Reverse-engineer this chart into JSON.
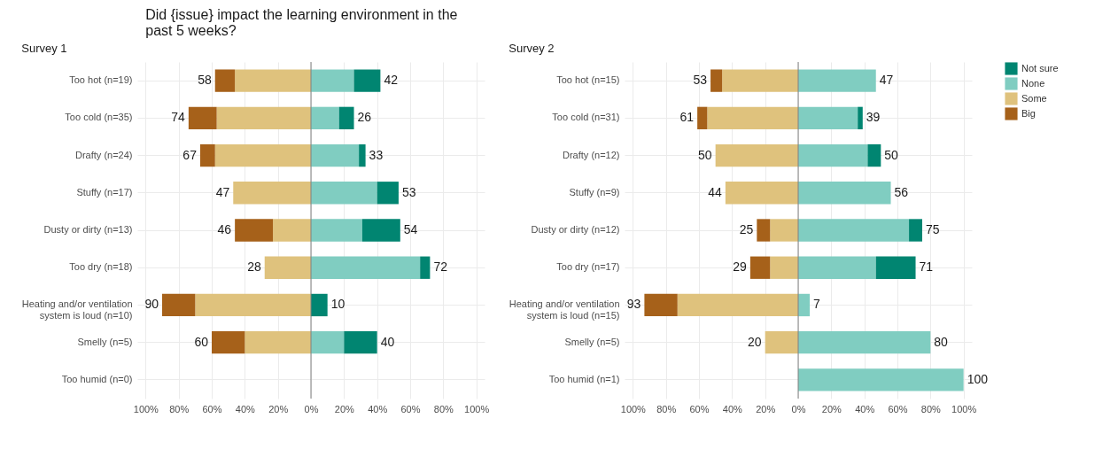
{
  "chart_data": [
    {
      "type": "bar",
      "orientation": "horizontal",
      "stacked": true,
      "grid": true,
      "legend": "right",
      "title": "Did {issue} impact the learning environment in the past 5 weeks?",
      "subtitle": "Survey 1",
      "categories": [
        "Too hot (n=19)",
        "Too cold (n=35)",
        "Drafty (n=24)",
        "Stuffy (n=17)",
        "Dusty or dirty (n=13)",
        "Too dry (n=18)",
        "Heating and/or ventilation system is loud (n=10)",
        "Smelly (n=5)",
        "Too humid (n=0)"
      ],
      "xlim": [
        -105,
        105
      ],
      "xticks": [
        {
          "value": -100,
          "label": "100%"
        },
        {
          "value": -80,
          "label": "80%"
        },
        {
          "value": -60,
          "label": "60%"
        },
        {
          "value": -40,
          "label": "40%"
        },
        {
          "value": -20,
          "label": "20%"
        },
        {
          "value": 0,
          "label": "0%"
        },
        {
          "value": 20,
          "label": "20%"
        },
        {
          "value": 40,
          "label": "40%"
        },
        {
          "value": 60,
          "label": "60%"
        },
        {
          "value": 80,
          "label": "80%"
        },
        {
          "value": 100,
          "label": "100%"
        }
      ],
      "series": [
        {
          "name": "Some",
          "color": "#dfc27d",
          "values": [
            -46,
            -57,
            -58,
            -47,
            -23,
            -28,
            -70,
            -40,
            null
          ]
        },
        {
          "name": "Big",
          "color": "#a6611a",
          "values": [
            -12,
            -17,
            -9,
            null,
            -23,
            null,
            -20,
            -20,
            null
          ]
        },
        {
          "name": "None",
          "color": "#80cdc1",
          "values": [
            26,
            17,
            29,
            40,
            31,
            66,
            null,
            20,
            null
          ]
        },
        {
          "name": "Not sure",
          "color": "#018571",
          "values": [
            16,
            9,
            4,
            13,
            23,
            6,
            10,
            20,
            null
          ]
        }
      ],
      "ref_lines": [
        {
          "axis": "x",
          "value": 0,
          "color": "#808080"
        }
      ],
      "annotations": [
        {
          "text": "58",
          "x": -58,
          "y": "Too hot (n=19)"
        },
        {
          "text": "42",
          "x": 42,
          "y": "Too hot (n=19)"
        },
        {
          "text": "74",
          "x": -74,
          "y": "Too cold (n=35)"
        },
        {
          "text": "26",
          "x": 26,
          "y": "Too cold (n=35)"
        },
        {
          "text": "67",
          "x": -67,
          "y": "Drafty (n=24)"
        },
        {
          "text": "33",
          "x": 33,
          "y": "Drafty (n=24)"
        },
        {
          "text": "47",
          "x": -47,
          "y": "Stuffy (n=17)"
        },
        {
          "text": "53",
          "x": 53,
          "y": "Stuffy (n=17)"
        },
        {
          "text": "46",
          "x": -46,
          "y": "Dusty or dirty (n=13)"
        },
        {
          "text": "54",
          "x": 54,
          "y": "Dusty or dirty (n=13)"
        },
        {
          "text": "28",
          "x": -28,
          "y": "Too dry (n=18)"
        },
        {
          "text": "72",
          "x": 72,
          "y": "Too dry (n=18)"
        },
        {
          "text": "90",
          "x": -90,
          "y": "Heating and/or ventilation system is loud (n=10)"
        },
        {
          "text": "10",
          "x": 10,
          "y": "Heating and/or ventilation system is loud (n=10)"
        },
        {
          "text": "60",
          "x": -60,
          "y": "Smelly (n=5)"
        },
        {
          "text": "40",
          "x": 40,
          "y": "Smelly (n=5)"
        }
      ]
    },
    {
      "type": "bar",
      "orientation": "horizontal",
      "stacked": true,
      "grid": true,
      "legend": "right",
      "subtitle": "Survey 2",
      "categories": [
        "Too hot (n=15)",
        "Too cold (n=31)",
        "Drafty (n=12)",
        "Stuffy (n=9)",
        "Dusty or dirty (n=12)",
        "Too dry (n=17)",
        "Heating and/or ventilation system is loud (n=15)",
        "Smelly (n=5)",
        "Too humid (n=1)"
      ],
      "xlim": [
        -105,
        105
      ],
      "xticks": [
        {
          "value": -100,
          "label": "100%"
        },
        {
          "value": -80,
          "label": "80%"
        },
        {
          "value": -60,
          "label": "60%"
        },
        {
          "value": -40,
          "label": "40%"
        },
        {
          "value": -20,
          "label": "20%"
        },
        {
          "value": 0,
          "label": "0%"
        },
        {
          "value": 20,
          "label": "20%"
        },
        {
          "value": 40,
          "label": "40%"
        },
        {
          "value": 60,
          "label": "60%"
        },
        {
          "value": 80,
          "label": "80%"
        },
        {
          "value": 100,
          "label": "100%"
        }
      ],
      "series": [
        {
          "name": "Some",
          "color": "#dfc27d",
          "values": [
            -46,
            -55,
            -50,
            -44,
            -17,
            -17,
            -73,
            -20,
            null
          ]
        },
        {
          "name": "Big",
          "color": "#a6611a",
          "values": [
            -7,
            -6,
            null,
            null,
            -8,
            -12,
            -20,
            null,
            null
          ]
        },
        {
          "name": "None",
          "color": "#80cdc1",
          "values": [
            47,
            36,
            42,
            56,
            67,
            47,
            7,
            80,
            100
          ]
        },
        {
          "name": "Not sure",
          "color": "#018571",
          "values": [
            null,
            3,
            8,
            null,
            8,
            24,
            null,
            null,
            null
          ]
        }
      ],
      "ref_lines": [
        {
          "axis": "x",
          "value": 0,
          "color": "#808080"
        }
      ],
      "annotations": [
        {
          "text": "53",
          "x": -53,
          "y": "Too hot (n=15)"
        },
        {
          "text": "47",
          "x": 47,
          "y": "Too hot (n=15)"
        },
        {
          "text": "61",
          "x": -61,
          "y": "Too cold (n=31)"
        },
        {
          "text": "39",
          "x": 39,
          "y": "Too cold (n=31)"
        },
        {
          "text": "50",
          "x": -50,
          "y": "Drafty (n=12)"
        },
        {
          "text": "50",
          "x": 50,
          "y": "Drafty (n=12)"
        },
        {
          "text": "44",
          "x": -44,
          "y": "Stuffy (n=9)"
        },
        {
          "text": "56",
          "x": 56,
          "y": "Stuffy (n=9)"
        },
        {
          "text": "25",
          "x": -25,
          "y": "Dusty or dirty (n=12)"
        },
        {
          "text": "75",
          "x": 75,
          "y": "Dusty or dirty (n=12)"
        },
        {
          "text": "29",
          "x": -29,
          "y": "Too dry (n=17)"
        },
        {
          "text": "71",
          "x": 71,
          "y": "Too dry (n=17)"
        },
        {
          "text": "93",
          "x": -93,
          "y": "Heating and/or ventilation system is loud (n=15)"
        },
        {
          "text": "7",
          "x": 7,
          "y": "Heating and/or ventilation system is loud (n=15)"
        },
        {
          "text": "20",
          "x": -20,
          "y": "Smelly (n=5)"
        },
        {
          "text": "80",
          "x": 80,
          "y": "Smelly (n=5)"
        },
        {
          "text": "100",
          "x": 100,
          "y": "Too humid (n=1)"
        }
      ]
    }
  ]
}
